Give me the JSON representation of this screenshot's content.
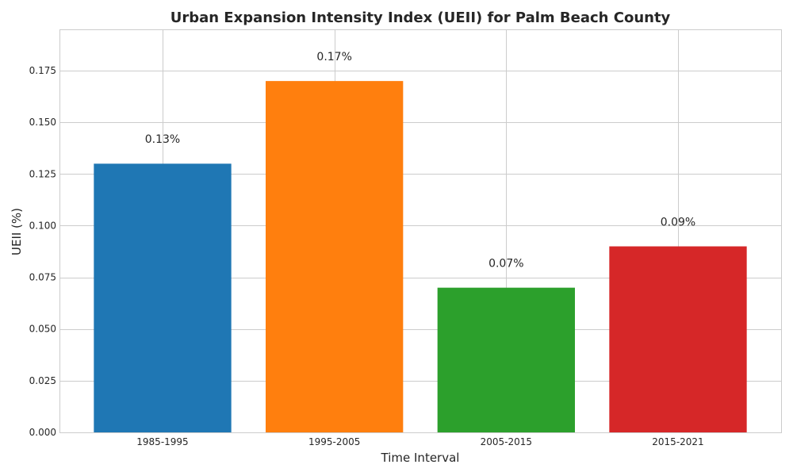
{
  "chart_data": {
    "type": "bar",
    "title": "Urban Expansion Intensity Index (UEII) for Palm Beach County",
    "xlabel": "Time Interval",
    "ylabel": "UEII (%)",
    "categories": [
      "1985-1995",
      "1995-2005",
      "2005-2015",
      "2015-2021"
    ],
    "values": [
      0.13,
      0.17,
      0.07,
      0.09
    ],
    "data_labels": [
      "0.13%",
      "0.17%",
      "0.07%",
      "0.09%"
    ],
    "colors": [
      "#1f77b4",
      "#ff7f0e",
      "#2ca02c",
      "#d62728"
    ],
    "ylim": [
      0,
      0.195
    ],
    "yticks": [
      0.0,
      0.025,
      0.05,
      0.075,
      0.1,
      0.125,
      0.15,
      0.175
    ],
    "ytick_labels": [
      "0.000",
      "0.025",
      "0.050",
      "0.075",
      "0.100",
      "0.125",
      "0.150",
      "0.175"
    ],
    "grid": true,
    "legend": "none"
  }
}
